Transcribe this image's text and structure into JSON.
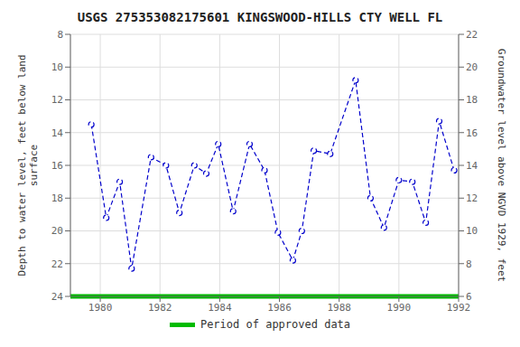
{
  "chart_data": {
    "type": "line",
    "title": "USGS 275353082175601 KINGSWOOD-HILLS CTY WELL FL",
    "y_label": "Depth to water level, feet below land\nsurface",
    "y2_label": "Groundwater level above NGVD 1929, feet",
    "x": [
      1979.7,
      1980.2,
      1980.65,
      1981.05,
      1981.7,
      1982.2,
      1982.65,
      1983.15,
      1983.55,
      1983.95,
      1984.45,
      1985.0,
      1985.5,
      1985.95,
      1986.45,
      1986.75,
      1987.15,
      1987.7,
      1988.55,
      1989.05,
      1989.5,
      1990.0,
      1990.45,
      1990.9,
      1991.35,
      1991.85
    ],
    "series": [
      {
        "color": "#0000cc",
        "marker": "circle",
        "line_style": "dashed",
        "values": [
          13.5,
          19.2,
          17.0,
          22.3,
          15.5,
          16.0,
          18.9,
          16.0,
          16.5,
          14.7,
          18.8,
          14.7,
          16.3,
          20.1,
          21.8,
          20.0,
          15.1,
          15.3,
          10.8,
          18.0,
          19.8,
          16.9,
          17.0,
          19.5,
          13.3,
          16.3
        ]
      },
      {
        "name": "Period of approved data",
        "color": "#00bb00",
        "type": "hline",
        "y": 24
      }
    ],
    "xlim": [
      1979,
      1992
    ],
    "xticks": [
      1980,
      1982,
      1984,
      1986,
      1988,
      1990,
      1992
    ],
    "ylim": [
      24,
      8
    ],
    "yticks": [
      8,
      10,
      12,
      14,
      16,
      18,
      20,
      22,
      24
    ],
    "y2lim": [
      6,
      22
    ],
    "y2ticks": [
      22,
      20,
      18,
      16,
      14,
      12,
      10,
      8,
      6
    ],
    "grid": true,
    "legend": "bottom"
  }
}
